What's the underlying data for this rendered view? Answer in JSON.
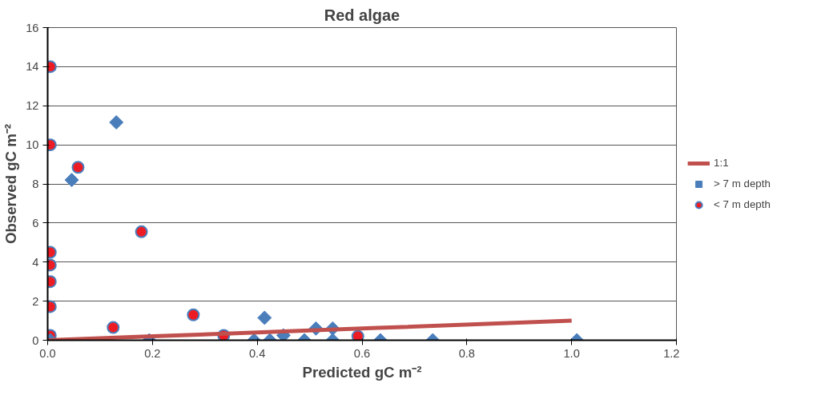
{
  "chart_data": {
    "type": "scatter",
    "title": "Red algae",
    "xlabel": "Predicted gC m⁻²",
    "ylabel": "Observed gC m⁻²",
    "xlim": [
      0,
      1.2
    ],
    "xticks": [
      {
        "value": 0,
        "label": "0.0"
      },
      {
        "value": 0.2,
        "label": "0.2"
      },
      {
        "value": 0.4,
        "label": "0.4"
      },
      {
        "value": 0.6,
        "label": "0.6"
      },
      {
        "value": 0.8,
        "label": "0.8"
      },
      {
        "value": 1.0,
        "label": "1.0"
      },
      {
        "value": 1.2,
        "label": "1.2"
      }
    ],
    "ylim": [
      0,
      16
    ],
    "yticks": [
      0,
      2,
      4,
      6,
      8,
      10,
      12,
      14,
      16
    ],
    "grid": "y",
    "legend": "right",
    "series": [
      {
        "name": "1:1",
        "type": "line",
        "color": "#c0504d",
        "marker": "none",
        "line_style": "solid",
        "x": [
          0,
          0.05,
          0.12,
          0.19,
          0.33,
          0.42,
          0.54,
          0.63,
          1.0
        ],
        "values": [
          0,
          0.05,
          0.12,
          0.19,
          0.33,
          0.42,
          0.54,
          0.63,
          1.0
        ]
      },
      {
        "name": "> 7 m depth",
        "color": "#4a7ebb",
        "marker": "diamond",
        "x": [
          0.005,
          0.046,
          0.131,
          0.194,
          0.394,
          0.414,
          0.424,
          0.45,
          0.49,
          0.512,
          0.544,
          0.544,
          0.635,
          0.735,
          1.01
        ],
        "values": [
          0,
          8.2,
          11.15,
          0,
          0,
          1.15,
          0,
          0.25,
          0,
          0.6,
          0.6,
          0,
          0,
          0,
          0
        ]
      },
      {
        "name": "< 7 m depth",
        "color": "#ed1c24",
        "marker": "circle",
        "x": [
          0.005,
          0.005,
          0.005,
          0.005,
          0.005,
          0.005,
          0.005,
          0.058,
          0.179,
          0.125,
          0.278,
          0.336,
          0.592
        ],
        "values": [
          14.0,
          10.0,
          4.5,
          3.85,
          3.0,
          1.72,
          0.25,
          8.85,
          5.55,
          0.65,
          1.3,
          0.25,
          0.2
        ]
      }
    ]
  }
}
